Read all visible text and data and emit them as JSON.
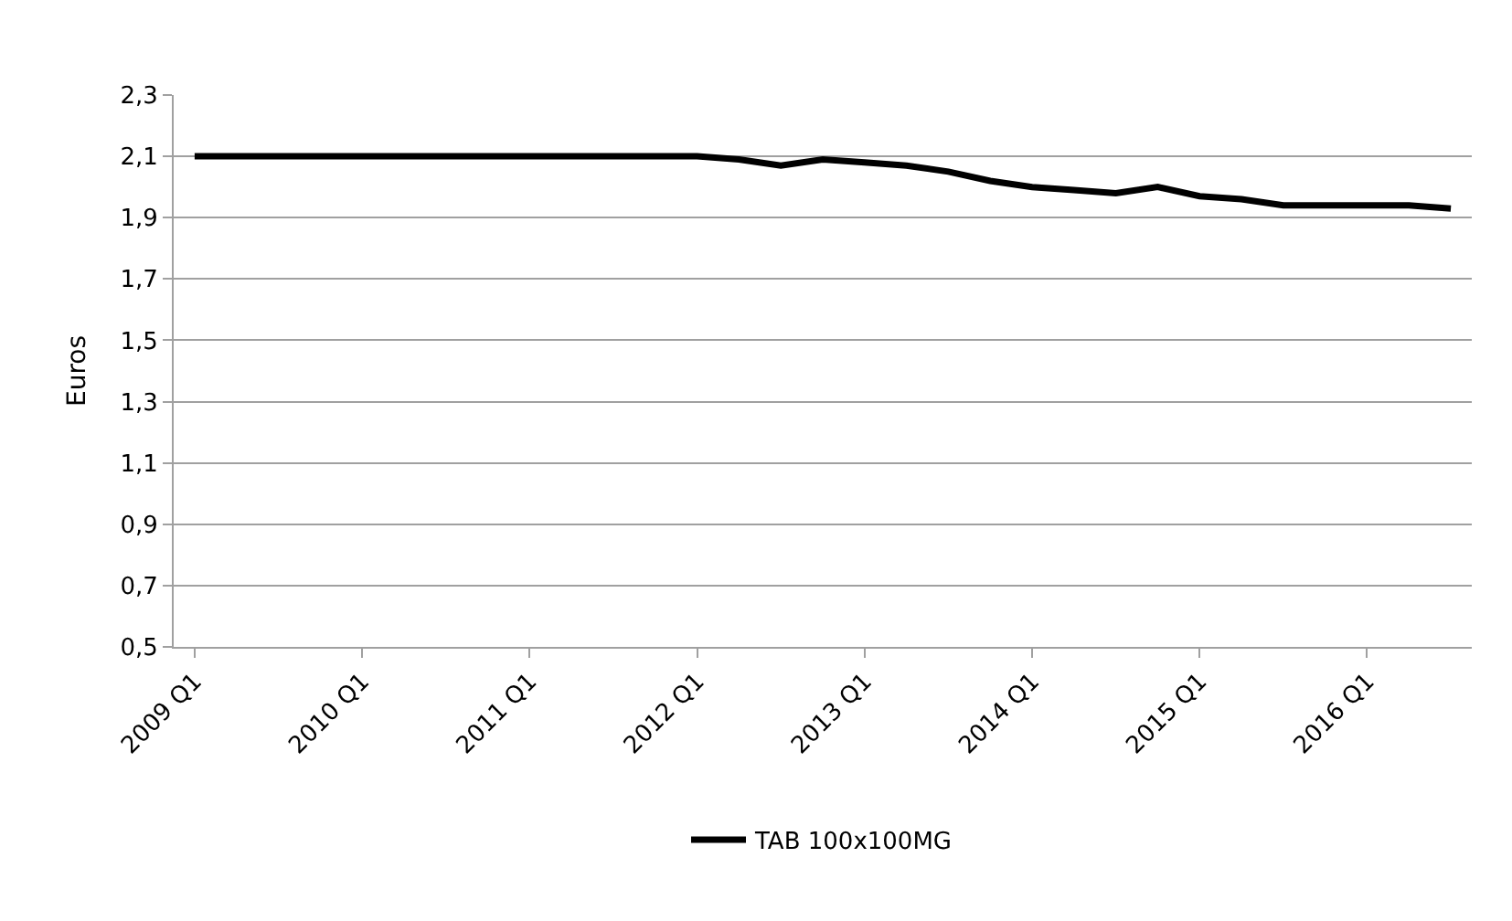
{
  "chart_data": {
    "type": "line",
    "ylabel": "Euros",
    "categories": [
      "2009 Q1",
      null,
      null,
      null,
      "2010 Q1",
      null,
      null,
      null,
      "2011 Q1",
      null,
      null,
      null,
      "2012 Q1",
      null,
      null,
      null,
      "2013 Q1",
      null,
      null,
      null,
      "2014 Q1",
      null,
      null,
      null,
      "2015 Q1",
      null,
      null,
      null,
      "2016 Q1",
      null,
      null
    ],
    "series": [
      {
        "name": "TAB 100x100MG",
        "color": "#000000",
        "values": [
          2.1,
          2.1,
          2.1,
          2.1,
          2.1,
          2.1,
          2.1,
          2.1,
          2.1,
          2.1,
          2.1,
          2.1,
          2.1,
          2.09,
          2.07,
          2.09,
          2.08,
          2.07,
          2.05,
          2.02,
          2.0,
          1.99,
          1.98,
          2.0,
          1.97,
          1.96,
          1.94,
          1.94,
          1.94,
          1.94,
          1.93
        ]
      }
    ],
    "ylim": [
      0.5,
      2.3
    ],
    "yticks": [
      {
        "value": 0.5,
        "label": "0,5"
      },
      {
        "value": 0.7,
        "label": "0,7"
      },
      {
        "value": 0.9,
        "label": "0,9"
      },
      {
        "value": 1.1,
        "label": "1,1"
      },
      {
        "value": 1.3,
        "label": "1,3"
      },
      {
        "value": 1.5,
        "label": "1,5"
      },
      {
        "value": 1.7,
        "label": "1,7"
      },
      {
        "value": 1.9,
        "label": "1,9"
      },
      {
        "value": 2.1,
        "label": "2,1"
      },
      {
        "value": 2.3,
        "label": "2,3"
      }
    ],
    "grid": "y",
    "legend": "bottom",
    "marker": "none",
    "line_style": "solid"
  }
}
